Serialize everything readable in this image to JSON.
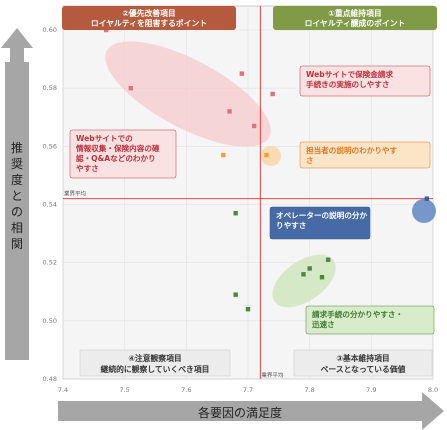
{
  "chart_data": {
    "type": "scatter",
    "title": "",
    "xlabel": "各要因の満足度",
    "ylabel": "推奨度との相関",
    "xlim": [
      7.4,
      8.0
    ],
    "ylim": [
      0.48,
      0.6
    ],
    "xticks": [
      "7.4",
      "7.5",
      "7.6",
      "7.7",
      "7.8",
      "7.9",
      "8.0"
    ],
    "yticks": [
      "0.48",
      "0.50",
      "0.52",
      "0.54",
      "0.56",
      "0.58",
      "0.60"
    ],
    "x_average": 7.72,
    "y_average": 0.542,
    "average_label_x": "業界平均",
    "average_label_y": "業界平均",
    "grid": true,
    "quadrants": {
      "top_left": {
        "line1": "②優先改善項目",
        "line2": "ロイヤルティを阻害するポイント",
        "color": "#b55a3c"
      },
      "top_right": {
        "line1": "①重点維持項目",
        "line2": "ロイヤルティ醸成のポイント",
        "color": "#7f9b45"
      },
      "bottom_left": {
        "line1": "④注意観察項目",
        "line2": "継続的に観察していくべき項目",
        "color": "#333333"
      },
      "bottom_right": {
        "line1": "③基本維持項目",
        "line2": "ベースとなっている価値",
        "color": "#333333"
      }
    },
    "series": [
      {
        "color": "#e0707a",
        "points": [
          [
            7.47,
            0.6
          ],
          [
            7.51,
            0.58
          ],
          [
            7.69,
            0.585
          ],
          [
            7.67,
            0.572
          ],
          [
            7.71,
            0.567
          ],
          [
            7.74,
            0.578
          ]
        ]
      },
      {
        "color": "#f0a040",
        "points": [
          [
            7.66,
            0.557
          ],
          [
            7.73,
            0.557
          ]
        ]
      },
      {
        "color": "#4a8a3c",
        "points": [
          [
            7.68,
            0.537
          ],
          [
            7.68,
            0.509
          ],
          [
            7.7,
            0.504
          ],
          [
            7.79,
            0.516
          ],
          [
            7.8,
            0.518
          ],
          [
            7.82,
            0.515
          ],
          [
            7.83,
            0.521
          ]
        ]
      },
      {
        "color": "#3a5f9e",
        "points": [
          [
            7.99,
            0.542
          ]
        ]
      }
    ],
    "annotations": [
      {
        "lines": [
          "Webサイトで保険金請求",
          "手続きの実施のしやすさ"
        ],
        "color": "#c0303a",
        "fill": "#fbe2e2"
      },
      {
        "lines": [
          "Webサイトでの",
          "情報収集・保険内容の確",
          "認・Q&Aなどのわかり",
          "やすさ"
        ],
        "color": "#c0303a",
        "fill": "#fbe2e2"
      },
      {
        "lines": [
          "担当者の説明のわかりやす",
          "さ"
        ],
        "color": "#e07a20",
        "fill": "#fde4c6"
      },
      {
        "lines": [
          "オペレーターの説明の分か",
          "りやすさ"
        ],
        "color": "#ffffff",
        "fill": "#3f65a3"
      },
      {
        "lines": [
          "請求手続の分かりやすさ・",
          "迅速さ"
        ],
        "color": "#3e7a2e",
        "fill": "#d8ecc9"
      }
    ]
  }
}
